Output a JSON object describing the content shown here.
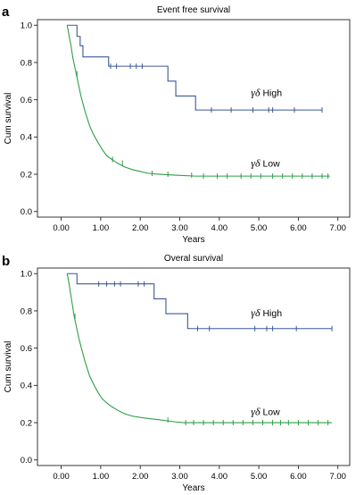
{
  "chart_data": [
    {
      "type": "line",
      "panel_label": "a",
      "title": "Event free survival",
      "xlabel": "Years",
      "ylabel": "Cum survival",
      "xlim": [
        -0.6,
        7.3
      ],
      "ylim": [
        -0.03,
        1.03
      ],
      "xticks": [
        0,
        1,
        2,
        3,
        4,
        5,
        6,
        7
      ],
      "xtick_labels": [
        "0.00",
        "1.00",
        "2.00",
        "3.00",
        "4.00",
        "5.00",
        "6.00",
        "7.00"
      ],
      "yticks": [
        0,
        0.2,
        0.4,
        0.6,
        0.8,
        1.0
      ],
      "ytick_labels": [
        "0.0",
        "0.2",
        "0.4",
        "0.6",
        "0.8",
        "1.0"
      ],
      "grid": false,
      "series": [
        {
          "name": "γδ High",
          "greek": "γδ",
          "word": "High",
          "color": "#3b5998",
          "label_at": [
            4.8,
            0.62
          ],
          "steps": [
            [
              0.15,
              1.0
            ],
            [
              0.4,
              1.0
            ],
            [
              0.4,
              0.94
            ],
            [
              0.48,
              0.94
            ],
            [
              0.48,
              0.89
            ],
            [
              0.55,
              0.89
            ],
            [
              0.55,
              0.83
            ],
            [
              1.2,
              0.83
            ],
            [
              1.2,
              0.78
            ],
            [
              2.7,
              0.78
            ],
            [
              2.7,
              0.7
            ],
            [
              2.9,
              0.7
            ],
            [
              2.9,
              0.62
            ],
            [
              3.4,
              0.62
            ],
            [
              3.4,
              0.545
            ],
            [
              6.6,
              0.545
            ]
          ],
          "censor": [
            1.25,
            1.4,
            1.75,
            1.9,
            2.05,
            3.8,
            4.3,
            4.85,
            5.25,
            5.35,
            5.9,
            6.6
          ]
        },
        {
          "name": "γδ Low",
          "greek": "γδ",
          "word": "Low",
          "color": "#2e9e47",
          "label_at": [
            4.8,
            0.24
          ],
          "steps": [
            [
              0.15,
              1.0
            ],
            [
              0.18,
              0.97
            ],
            [
              0.21,
              0.93
            ],
            [
              0.24,
              0.9
            ],
            [
              0.27,
              0.86
            ],
            [
              0.3,
              0.82
            ],
            [
              0.34,
              0.78
            ],
            [
              0.38,
              0.74
            ],
            [
              0.42,
              0.7
            ],
            [
              0.46,
              0.66
            ],
            [
              0.5,
              0.62
            ],
            [
              0.55,
              0.58
            ],
            [
              0.6,
              0.54
            ],
            [
              0.66,
              0.5
            ],
            [
              0.72,
              0.46
            ],
            [
              0.8,
              0.42
            ],
            [
              0.88,
              0.39
            ],
            [
              0.96,
              0.36
            ],
            [
              1.05,
              0.33
            ],
            [
              1.15,
              0.3
            ],
            [
              1.28,
              0.28
            ],
            [
              1.42,
              0.26
            ],
            [
              1.6,
              0.24
            ],
            [
              1.8,
              0.225
            ],
            [
              2.0,
              0.215
            ],
            [
              2.2,
              0.205
            ],
            [
              2.5,
              0.2
            ],
            [
              2.9,
              0.195
            ],
            [
              3.4,
              0.19
            ],
            [
              6.8,
              0.19
            ]
          ],
          "censor": [
            0.4,
            1.3,
            1.55,
            2.3,
            2.7,
            3.3,
            3.6,
            3.95,
            4.2,
            4.55,
            4.8,
            5.05,
            5.35,
            5.6,
            5.85,
            6.1,
            6.35,
            6.6,
            6.75
          ]
        }
      ]
    },
    {
      "type": "line",
      "panel_label": "b",
      "title": "Overal survival",
      "xlabel": "Years",
      "ylabel": "Cum survival",
      "xlim": [
        -0.6,
        7.3
      ],
      "ylim": [
        -0.03,
        1.03
      ],
      "xticks": [
        0,
        1,
        2,
        3,
        4,
        5,
        6,
        7
      ],
      "xtick_labels": [
        "0.00",
        "1.00",
        "2.00",
        "3.00",
        "4.00",
        "5.00",
        "6.00",
        "7.00"
      ],
      "yticks": [
        0,
        0.2,
        0.4,
        0.6,
        0.8,
        1.0
      ],
      "ytick_labels": [
        "0.0",
        "0.2",
        "0.4",
        "0.6",
        "0.8",
        "1.0"
      ],
      "grid": false,
      "series": [
        {
          "name": "γδ High",
          "greek": "γδ",
          "word": "High",
          "color": "#3b5998",
          "label_at": [
            4.8,
            0.77
          ],
          "steps": [
            [
              0.15,
              1.0
            ],
            [
              0.4,
              1.0
            ],
            [
              0.4,
              0.945
            ],
            [
              2.35,
              0.945
            ],
            [
              2.35,
              0.865
            ],
            [
              2.65,
              0.865
            ],
            [
              2.65,
              0.785
            ],
            [
              3.2,
              0.785
            ],
            [
              3.2,
              0.705
            ],
            [
              6.85,
              0.705
            ]
          ],
          "censor": [
            0.95,
            1.15,
            1.35,
            1.5,
            1.95,
            2.1,
            3.45,
            3.75,
            4.9,
            5.2,
            5.35,
            5.95,
            6.85
          ]
        },
        {
          "name": "γδ Low",
          "greek": "γδ",
          "word": "Low",
          "color": "#2e9e47",
          "label_at": [
            4.8,
            0.24
          ],
          "steps": [
            [
              0.15,
              1.0
            ],
            [
              0.18,
              0.97
            ],
            [
              0.21,
              0.93
            ],
            [
              0.24,
              0.89
            ],
            [
              0.27,
              0.85
            ],
            [
              0.3,
              0.81
            ],
            [
              0.33,
              0.77
            ],
            [
              0.37,
              0.73
            ],
            [
              0.41,
              0.69
            ],
            [
              0.45,
              0.65
            ],
            [
              0.5,
              0.61
            ],
            [
              0.55,
              0.57
            ],
            [
              0.6,
              0.53
            ],
            [
              0.66,
              0.49
            ],
            [
              0.72,
              0.45
            ],
            [
              0.79,
              0.42
            ],
            [
              0.86,
              0.39
            ],
            [
              0.94,
              0.36
            ],
            [
              1.03,
              0.33
            ],
            [
              1.13,
              0.31
            ],
            [
              1.25,
              0.29
            ],
            [
              1.4,
              0.27
            ],
            [
              1.58,
              0.25
            ],
            [
              1.8,
              0.235
            ],
            [
              2.1,
              0.225
            ],
            [
              2.5,
              0.215
            ],
            [
              2.85,
              0.205
            ],
            [
              3.1,
              0.2
            ],
            [
              6.85,
              0.2
            ]
          ],
          "censor": [
            0.35,
            2.7,
            3.15,
            3.35,
            3.6,
            3.85,
            4.1,
            4.35,
            4.6,
            4.85,
            5.1,
            5.35,
            5.55,
            5.75,
            6.0,
            6.25,
            6.5,
            6.75
          ]
        }
      ]
    }
  ]
}
